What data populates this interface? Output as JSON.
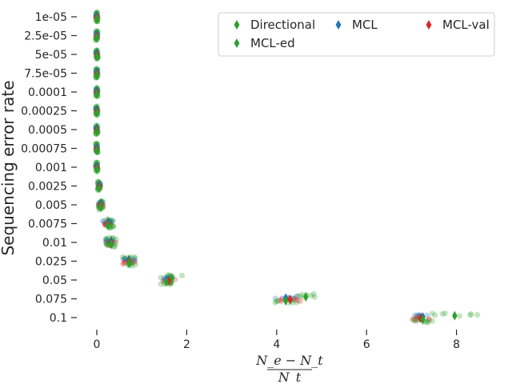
{
  "chart_data": {
    "type": "scatter",
    "title": "",
    "ylabel": "Sequencing error rate",
    "xlabel": {
      "numerator": "N_e − N_t",
      "denominator": "N_t"
    },
    "x_ticks": [
      0,
      2,
      4,
      6,
      8
    ],
    "xlim": [
      -0.5,
      8.8
    ],
    "categories": [
      "1e-05",
      "2.5e-05",
      "5e-05",
      "7.5e-05",
      "0.0001",
      "0.00025",
      "0.0005",
      "0.00075",
      "0.001",
      "0.0025",
      "0.005",
      "0.0075",
      "0.01",
      "0.025",
      "0.05",
      "0.075",
      "0.1"
    ],
    "grid": false,
    "legend": {
      "placement": "top-right",
      "columns": 3,
      "entries": [
        "Directional",
        "MCL",
        "MCL-val",
        "MCL-ed"
      ]
    },
    "series": [
      {
        "name": "Directional",
        "color": "#2ca02c",
        "means": [
          0.0,
          0.0,
          0.0,
          0.0,
          0.0,
          0.0,
          0.0,
          0.0,
          0.0,
          0.05,
          0.09,
          0.25,
          0.32,
          0.72,
          1.67,
          4.65,
          7.96
        ],
        "spread": [
          0.02,
          0.02,
          0.02,
          0.02,
          0.02,
          0.02,
          0.02,
          0.02,
          0.02,
          0.03,
          0.05,
          0.12,
          0.12,
          0.17,
          0.28,
          0.25,
          0.6
        ]
      },
      {
        "name": "MCL",
        "color": "#1f77b4",
        "means": [
          0.0,
          0.0,
          0.0,
          0.0,
          0.0,
          0.0,
          0.0,
          0.0,
          0.0,
          0.05,
          0.09,
          0.25,
          0.32,
          0.7,
          1.55,
          4.2,
          7.25
        ],
        "spread": [
          0.02,
          0.02,
          0.02,
          0.02,
          0.02,
          0.02,
          0.02,
          0.02,
          0.02,
          0.03,
          0.05,
          0.12,
          0.12,
          0.15,
          0.15,
          0.25,
          0.25
        ]
      },
      {
        "name": "MCL-val",
        "color": "#d62728",
        "means": [
          0.0,
          0.0,
          0.0,
          0.0,
          0.0,
          0.0,
          0.0,
          0.0,
          0.0,
          0.05,
          0.09,
          0.25,
          0.32,
          0.72,
          1.6,
          4.3,
          7.2
        ],
        "spread": [
          0.02,
          0.02,
          0.02,
          0.02,
          0.02,
          0.02,
          0.02,
          0.02,
          0.02,
          0.03,
          0.05,
          0.12,
          0.12,
          0.15,
          0.15,
          0.25,
          0.25
        ]
      },
      {
        "name": "MCL-ed",
        "color": "#2ca02c",
        "means": [
          0.0,
          0.0,
          0.0,
          0.0,
          0.0,
          0.0,
          0.0,
          0.0,
          0.0,
          0.05,
          0.09,
          0.25,
          0.32,
          0.72,
          1.55,
          4.2,
          7.25
        ],
        "spread": [
          0.02,
          0.02,
          0.02,
          0.02,
          0.02,
          0.02,
          0.02,
          0.02,
          0.02,
          0.03,
          0.05,
          0.12,
          0.12,
          0.15,
          0.15,
          0.25,
          0.25
        ]
      }
    ]
  }
}
